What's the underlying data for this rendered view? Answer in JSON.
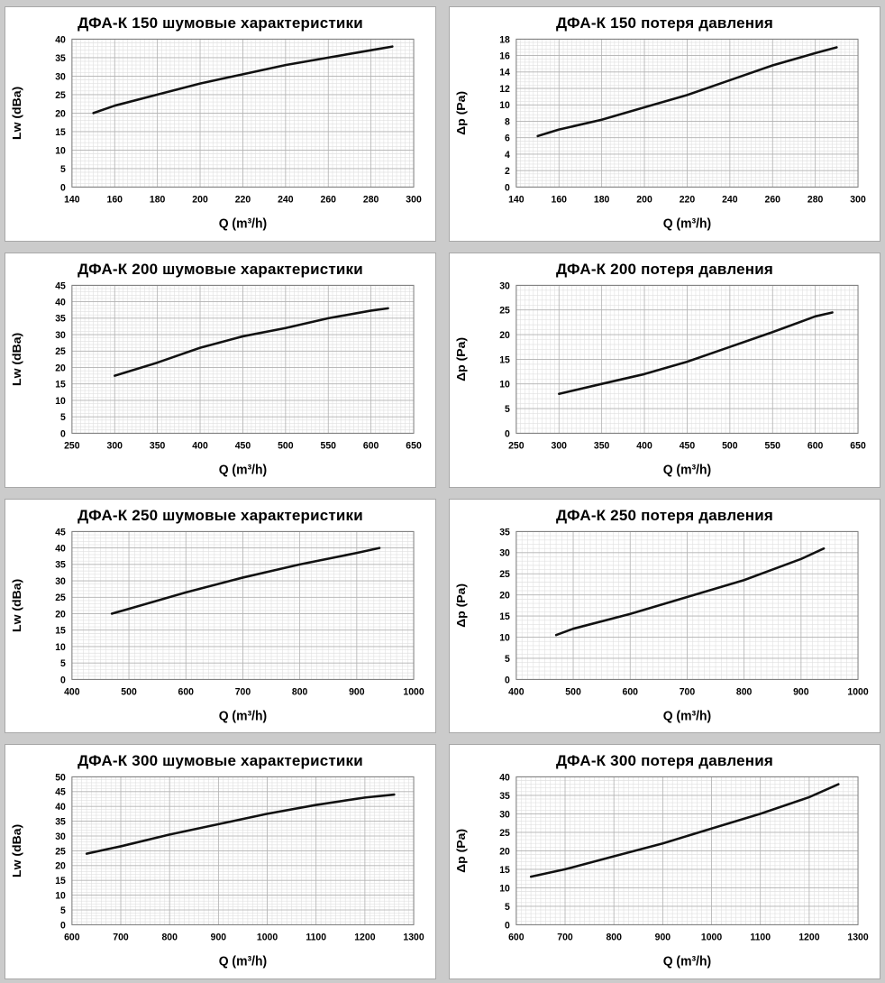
{
  "page": {
    "background_color": "#cbcbcb",
    "panel_border_color": "#a8a8a8",
    "grid_minor_color": "#e0e0e0",
    "grid_major_color": "#b2b2b2",
    "plot_border_color": "#7f7f7f",
    "line_color": "#111111"
  },
  "chart_data": [
    {
      "type": "line",
      "title": "ДФА-К 150 шумовые характеристики",
      "xlabel": "Q (m³/h)",
      "ylabel": "Lw (dBa)",
      "xlim": [
        140,
        300
      ],
      "xstep": 20,
      "ylim": [
        0,
        40
      ],
      "ystep": 5,
      "grid": true,
      "legend": "none",
      "points": [
        [
          150,
          20
        ],
        [
          160,
          22
        ],
        [
          180,
          25
        ],
        [
          200,
          28
        ],
        [
          220,
          30.5
        ],
        [
          240,
          33
        ],
        [
          260,
          35
        ],
        [
          280,
          37
        ],
        [
          290,
          38
        ]
      ]
    },
    {
      "type": "line",
      "title": "ДФА-К 150 потеря давления",
      "xlabel": "Q (m³/h)",
      "ylabel": "Δp (Pa)",
      "xlim": [
        140,
        300
      ],
      "xstep": 20,
      "ylim": [
        0,
        18
      ],
      "ystep": 2,
      "grid": true,
      "legend": "none",
      "points": [
        [
          150,
          6.2
        ],
        [
          160,
          7
        ],
        [
          180,
          8.2
        ],
        [
          200,
          9.7
        ],
        [
          220,
          11.2
        ],
        [
          240,
          13
        ],
        [
          260,
          14.8
        ],
        [
          280,
          16.3
        ],
        [
          290,
          17
        ]
      ]
    },
    {
      "type": "line",
      "title": "ДФА-К 200 шумовые характеристики",
      "xlabel": "Q (m³/h)",
      "ylabel": "Lw (dBa)",
      "xlim": [
        250,
        650
      ],
      "xstep": 50,
      "ylim": [
        0,
        45
      ],
      "ystep": 5,
      "grid": true,
      "legend": "none",
      "points": [
        [
          300,
          17.5
        ],
        [
          350,
          21.5
        ],
        [
          400,
          26
        ],
        [
          450,
          29.5
        ],
        [
          500,
          32
        ],
        [
          550,
          35
        ],
        [
          600,
          37.3
        ],
        [
          620,
          38
        ]
      ]
    },
    {
      "type": "line",
      "title": "ДФА-К 200 потеря давления",
      "xlabel": "Q (m³/h)",
      "ylabel": "Δp (Pa)",
      "xlim": [
        250,
        650
      ],
      "xstep": 50,
      "ylim": [
        0,
        30
      ],
      "ystep": 5,
      "grid": true,
      "legend": "none",
      "points": [
        [
          300,
          8
        ],
        [
          350,
          10
        ],
        [
          400,
          12
        ],
        [
          450,
          14.5
        ],
        [
          500,
          17.5
        ],
        [
          550,
          20.5
        ],
        [
          600,
          23.7
        ],
        [
          620,
          24.5
        ]
      ]
    },
    {
      "type": "line",
      "title": "ДФА-К 250 шумовые характеристики",
      "xlabel": "Q (m³/h)",
      "ylabel": "Lw (dBa)",
      "xlim": [
        400,
        1000
      ],
      "xstep": 100,
      "ylim": [
        0,
        45
      ],
      "ystep": 5,
      "grid": true,
      "legend": "none",
      "points": [
        [
          470,
          20
        ],
        [
          500,
          21.5
        ],
        [
          600,
          26.5
        ],
        [
          700,
          31
        ],
        [
          800,
          35
        ],
        [
          900,
          38.5
        ],
        [
          940,
          40
        ]
      ]
    },
    {
      "type": "line",
      "title": "ДФА-К 250 потеря давления",
      "xlabel": "Q (m³/h)",
      "ylabel": "Δp (Pa)",
      "xlim": [
        400,
        1000
      ],
      "xstep": 100,
      "ylim": [
        0,
        35
      ],
      "ystep": 5,
      "grid": true,
      "legend": "none",
      "points": [
        [
          470,
          10.5
        ],
        [
          480,
          11
        ],
        [
          500,
          12
        ],
        [
          600,
          15.5
        ],
        [
          700,
          19.5
        ],
        [
          800,
          23.5
        ],
        [
          900,
          28.5
        ],
        [
          940,
          31
        ]
      ]
    },
    {
      "type": "line",
      "title": "ДФА-К 300 шумовые характеристики",
      "xlabel": "Q (m³/h)",
      "ylabel": "Lw (dBa)",
      "xlim": [
        600,
        1300
      ],
      "xstep": 100,
      "ylim": [
        0,
        50
      ],
      "ystep": 5,
      "grid": true,
      "legend": "none",
      "points": [
        [
          630,
          24
        ],
        [
          700,
          26.5
        ],
        [
          800,
          30.5
        ],
        [
          900,
          34
        ],
        [
          1000,
          37.5
        ],
        [
          1100,
          40.5
        ],
        [
          1200,
          43
        ],
        [
          1260,
          44
        ]
      ]
    },
    {
      "type": "line",
      "title": "ДФА-К 300 потеря давления",
      "xlabel": "Q (m³/h)",
      "ylabel": "Δp (Pa)",
      "xlim": [
        600,
        1300
      ],
      "xstep": 100,
      "ylim": [
        0,
        40
      ],
      "ystep": 5,
      "grid": true,
      "legend": "none",
      "points": [
        [
          630,
          13
        ],
        [
          700,
          15
        ],
        [
          800,
          18.5
        ],
        [
          900,
          22
        ],
        [
          1000,
          26
        ],
        [
          1100,
          30
        ],
        [
          1200,
          34.5
        ],
        [
          1260,
          38
        ]
      ]
    }
  ]
}
